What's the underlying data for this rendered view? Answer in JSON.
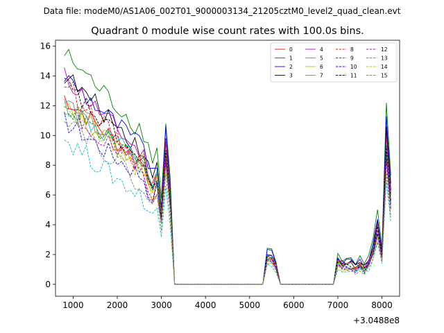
{
  "suptitle": "Data file: modeM0/AS1A06_002T01_9000003134_21205cztM0_level2_quad_clean.evt",
  "chart_data": {
    "type": "line",
    "title": "Quadrant 0 module wise count rates with 100.0s bins.",
    "xlabel": "",
    "ylabel": "",
    "x_offset_label": "+3.0488e8",
    "xlim": [
      600,
      8400
    ],
    "ylim": [
      -0.8,
      16.4
    ],
    "x_ticks": [
      1000,
      2000,
      3000,
      4000,
      5000,
      6000,
      7000,
      8000
    ],
    "x_tick_labels": [
      "1000",
      "2000",
      "3000",
      "4000",
      "5000",
      "6000",
      "7000",
      "8000"
    ],
    "y_ticks": [
      0,
      2,
      4,
      6,
      8,
      10,
      12,
      14,
      16
    ],
    "y_tick_labels": [
      "0",
      "2",
      "4",
      "6",
      "8",
      "10",
      "12",
      "14",
      "16"
    ],
    "legend_location": "upper right",
    "x": [
      800,
      900,
      1000,
      1100,
      1200,
      1300,
      1400,
      1500,
      1600,
      1700,
      1800,
      1900,
      2000,
      2100,
      2200,
      2300,
      2400,
      2500,
      2600,
      2700,
      2800,
      2900,
      3000,
      3100,
      3200,
      3300,
      3400,
      3500,
      3600,
      3700,
      3800,
      3900,
      4000,
      4100,
      4200,
      4300,
      4400,
      4500,
      4600,
      4700,
      4800,
      4900,
      5000,
      5100,
      5200,
      5300,
      5400,
      5500,
      5600,
      5700,
      5800,
      5900,
      6000,
      6100,
      6200,
      6300,
      6400,
      6500,
      6600,
      6700,
      6800,
      6900,
      7000,
      7100,
      7200,
      7300,
      7400,
      7500,
      7600,
      7700,
      7800,
      7900,
      8000,
      8100,
      8200
    ],
    "series": [
      {
        "name": "0",
        "color": "#ff0000",
        "dash": "solid",
        "start": 12.6,
        "end": 7.5,
        "peak3000": 9.6,
        "peak8100": 10.3
      },
      {
        "name": "1",
        "color": "#008000",
        "dash": "solid",
        "start": 15.5,
        "end": 9.6,
        "peak3000": 10.8,
        "peak8100": 12.2
      },
      {
        "name": "2",
        "color": "#0000ff",
        "dash": "solid",
        "start": 14.0,
        "end": 8.6,
        "peak3000": 10.6,
        "peak8100": 11.3
      },
      {
        "name": "3",
        "color": "#000000",
        "dash": "solid",
        "start": 14.1,
        "end": 8.4,
        "peak3000": 9.8,
        "peak8100": 10.6
      },
      {
        "name": "4",
        "color": "#bf00bf",
        "dash": "solid",
        "start": 14.0,
        "end": 8.0,
        "peak3000": 9.7,
        "peak8100": 10.0
      },
      {
        "name": "5",
        "color": "#00bfbf",
        "dash": "solid",
        "start": 12.1,
        "end": 7.6,
        "peak3000": 9.0,
        "peak8100": 9.4
      },
      {
        "name": "6",
        "color": "#bfbf00",
        "dash": "solid",
        "start": 11.8,
        "end": 7.7,
        "peak3000": 9.0,
        "peak8100": 9.2
      },
      {
        "name": "7",
        "color": "#808080",
        "dash": "solid",
        "start": 12.3,
        "end": 7.6,
        "peak3000": 8.6,
        "peak8100": 9.0
      },
      {
        "name": "8",
        "color": "#ff0000",
        "dash": "dashed",
        "start": 13.6,
        "end": 7.1,
        "peak3000": 8.8,
        "peak8100": 8.9
      },
      {
        "name": "9",
        "color": "#008000",
        "dash": "dashed",
        "start": 12.0,
        "end": 7.3,
        "peak3000": 8.4,
        "peak8100": 8.7
      },
      {
        "name": "10",
        "color": "#0000ff",
        "dash": "dashed",
        "start": 11.0,
        "end": 6.8,
        "peak3000": 8.2,
        "peak8100": 8.4
      },
      {
        "name": "11",
        "color": "#000000",
        "dash": "dashed",
        "start": 13.5,
        "end": 7.4,
        "peak3000": 9.0,
        "peak8100": 9.3
      },
      {
        "name": "12",
        "color": "#bf00bf",
        "dash": "dashed",
        "start": 11.8,
        "end": 6.9,
        "peak3000": 8.3,
        "peak8100": 8.3
      },
      {
        "name": "13",
        "color": "#00bfbf",
        "dash": "dashed",
        "start": 9.8,
        "end": 5.3,
        "peak3000": 6.6,
        "peak8100": 7.0
      },
      {
        "name": "14",
        "color": "#bfbf00",
        "dash": "dashed",
        "start": 12.3,
        "end": 6.7,
        "peak3000": 7.9,
        "peak8100": 7.7
      },
      {
        "name": "15",
        "color": "#808080",
        "dash": "dashed",
        "start": 11.5,
        "end": 6.0,
        "peak3000": 7.4,
        "peak8100": 7.5
      }
    ]
  }
}
